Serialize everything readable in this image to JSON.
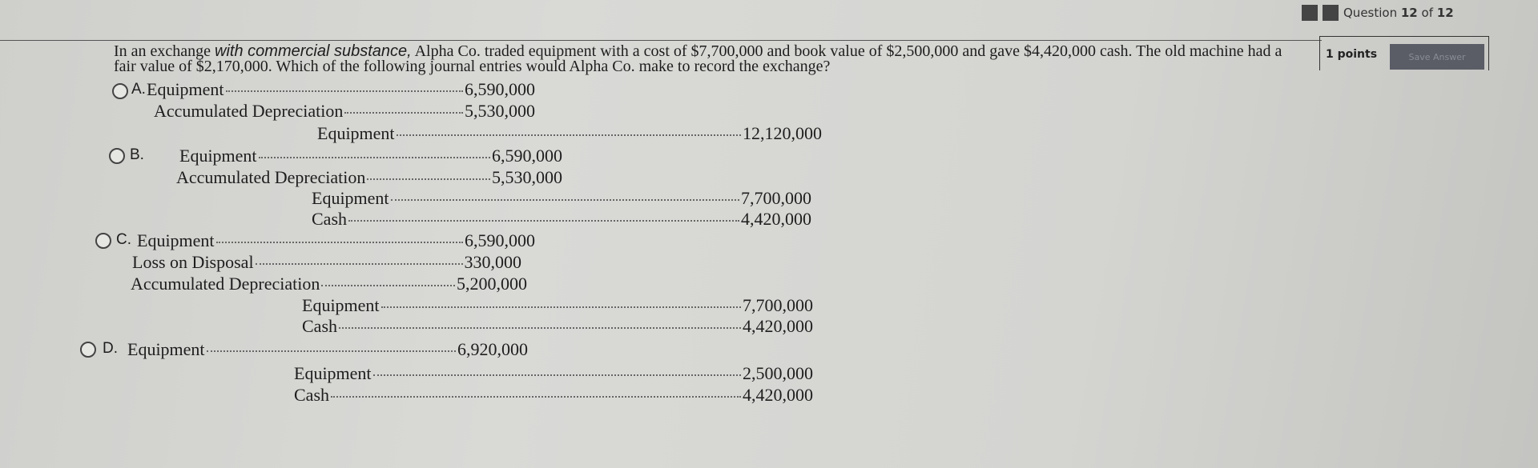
{
  "header": {
    "question_prefix": "Question",
    "question_current": "12",
    "question_of": "of",
    "question_total": "12",
    "points": "1 points",
    "save_label": "Save Answer"
  },
  "question": {
    "part1": "In an exchange",
    "italic": "with commercial substance,",
    "part2": "Alpha Co. traded equipment with a cost of $7,700,000 and book value of $2,500,000 and gave $4,420,000 cash. The old machine had a fair value of $2,170,000. Which of the following journal entries would Alpha Co. make to record the exchange?"
  },
  "options": [
    {
      "letter": "A.",
      "lines": [
        {
          "account": "Equipment",
          "amount": "6,590,000"
        },
        {
          "account": "Accumulated Depreciation",
          "amount": "5,530,000"
        },
        {
          "account": "Equipment",
          "amount": "12,120,000"
        }
      ]
    },
    {
      "letter": "B.",
      "lines": [
        {
          "account": "Equipment",
          "amount": "6,590,000"
        },
        {
          "account": "Accumulated Depreciation",
          "amount": "5,530,000"
        },
        {
          "account": "Equipment",
          "amount": "7,700,000"
        },
        {
          "account": "Cash",
          "amount": "4,420,000"
        }
      ]
    },
    {
      "letter": "C.",
      "lines": [
        {
          "account": "Equipment",
          "amount": "6,590,000"
        },
        {
          "account": "Loss on Disposal",
          "amount": "330,000"
        },
        {
          "account": "Accumulated Depreciation",
          "amount": "5,200,000"
        },
        {
          "account": "Equipment",
          "amount": "7,700,000"
        },
        {
          "account": "Cash",
          "amount": "4,420,000"
        }
      ]
    },
    {
      "letter": "D.",
      "lines": [
        {
          "account": "Equipment",
          "amount": "6,920,000"
        },
        {
          "account": "Equipment",
          "amount": "2,500,000"
        },
        {
          "account": "Cash",
          "amount": "4,420,000"
        }
      ]
    }
  ]
}
